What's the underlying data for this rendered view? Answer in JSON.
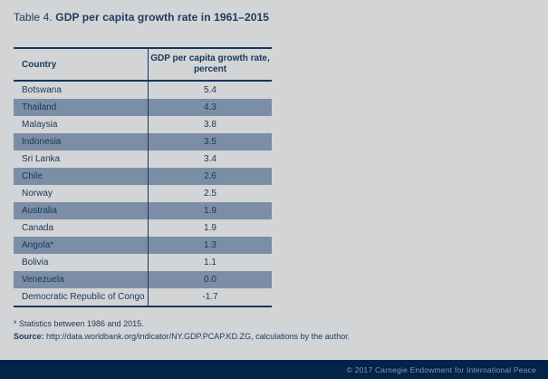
{
  "title": {
    "prefix": "Table 4. ",
    "main": "GDP per capita growth rate in 1961–2015"
  },
  "table": {
    "headers": {
      "country": "Country",
      "value_line1": "GDP per capita growth rate,",
      "value_line2": "percent"
    },
    "rows": [
      {
        "country": "Botswana",
        "value": "5.4"
      },
      {
        "country": "Thailand",
        "value": "4.3"
      },
      {
        "country": "Malaysia",
        "value": "3.8"
      },
      {
        "country": "Indonesia",
        "value": "3.5"
      },
      {
        "country": "Sri Lanka",
        "value": "3.4"
      },
      {
        "country": "Chile",
        "value": "2.6"
      },
      {
        "country": "Norway",
        "value": "2.5"
      },
      {
        "country": "Australia",
        "value": "1.9"
      },
      {
        "country": "Canada",
        "value": "1.9"
      },
      {
        "country": "Angola*",
        "value": "1.3"
      },
      {
        "country": "Bolivia",
        "value": "1.1"
      },
      {
        "country": "Venezuela",
        "value": "0.0"
      },
      {
        "country": "Democratic Republic of Congo",
        "value": "-1.7"
      }
    ]
  },
  "footnote": "* Statistics between 1986 and 2015.",
  "source": {
    "label": "Source:",
    "text": " http://data.worldbank.org/indicator/NY.GDP.PCAP.KD.ZG, calculations by the author."
  },
  "footer": {
    "copyright": "© 2017 Carnegie Endowment for International Peace"
  },
  "colors": {
    "page_background": "#d2d4d6",
    "row_alternate": "#7b8ea6",
    "text_navy": "#17375d",
    "border_navy": "#16365c",
    "footer_background": "#032348",
    "footer_text": "#8497b1"
  }
}
